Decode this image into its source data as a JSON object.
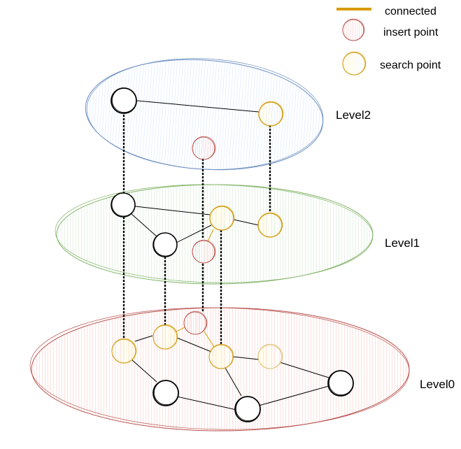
{
  "legend": {
    "connected_label": "connected",
    "insert_label": "insert point",
    "search_label": "search point"
  },
  "levels": {
    "level2": "Level2",
    "level1": "Level1",
    "level0": "Level0"
  },
  "colors": {
    "connected": "#d79b00",
    "insert_stroke": "#b85450",
    "insert_fill": "#f8cecc",
    "search_stroke": "#d6a31f",
    "search_fill": "#fff2cc",
    "normal_stroke": "#000000",
    "level2_stroke": "#6c8ebf",
    "level2_fill": "#dae8fc",
    "level1_stroke": "#82b366",
    "level1_fill": "#d5e8d4",
    "level0_stroke": "#b85450",
    "level0_fill": "#f8cecc"
  }
}
